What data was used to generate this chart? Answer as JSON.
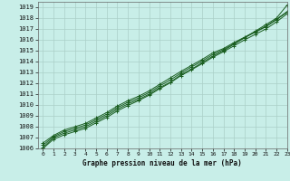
{
  "title": "Graphe pression niveau de la mer (hPa)",
  "bg_color": "#c8eee8",
  "grid_color": "#aacfc8",
  "line_color": "#1a5e20",
  "xlim": [
    -0.5,
    23
  ],
  "ylim": [
    1006,
    1019.5
  ],
  "xticks": [
    0,
    1,
    2,
    3,
    4,
    5,
    6,
    7,
    8,
    9,
    10,
    11,
    12,
    13,
    14,
    15,
    16,
    17,
    18,
    19,
    20,
    21,
    22,
    23
  ],
  "yticks": [
    1006,
    1007,
    1008,
    1009,
    1010,
    1011,
    1012,
    1013,
    1014,
    1015,
    1016,
    1017,
    1018,
    1019
  ],
  "series": [
    [
      1006.1,
      1007.0,
      1007.4,
      1007.7,
      1008.0,
      1008.5,
      1009.0,
      1009.6,
      1010.1,
      1010.5,
      1011.0,
      1011.6,
      1012.1,
      1012.8,
      1013.3,
      1013.9,
      1014.5,
      1015.0,
      1015.6,
      1016.2,
      1016.8,
      1017.4,
      1018.0,
      1019.2
    ],
    [
      1006.3,
      1007.1,
      1007.55,
      1007.85,
      1008.15,
      1008.65,
      1009.15,
      1009.75,
      1010.25,
      1010.65,
      1011.15,
      1011.75,
      1012.3,
      1012.95,
      1013.5,
      1014.05,
      1014.65,
      1015.1,
      1015.65,
      1016.2,
      1016.7,
      1017.2,
      1017.85,
      1018.55
    ],
    [
      1006.5,
      1007.2,
      1007.7,
      1008.0,
      1008.3,
      1008.8,
      1009.3,
      1009.9,
      1010.4,
      1010.8,
      1011.3,
      1011.9,
      1012.5,
      1013.1,
      1013.65,
      1014.2,
      1014.8,
      1015.2,
      1015.75,
      1016.25,
      1016.75,
      1017.25,
      1017.9,
      1018.6
    ],
    [
      1006.0,
      1006.85,
      1007.25,
      1007.55,
      1007.85,
      1008.35,
      1008.85,
      1009.45,
      1009.95,
      1010.4,
      1010.9,
      1011.5,
      1012.05,
      1012.7,
      1013.25,
      1013.8,
      1014.4,
      1014.9,
      1015.45,
      1016.0,
      1016.5,
      1017.0,
      1017.65,
      1018.4
    ]
  ]
}
